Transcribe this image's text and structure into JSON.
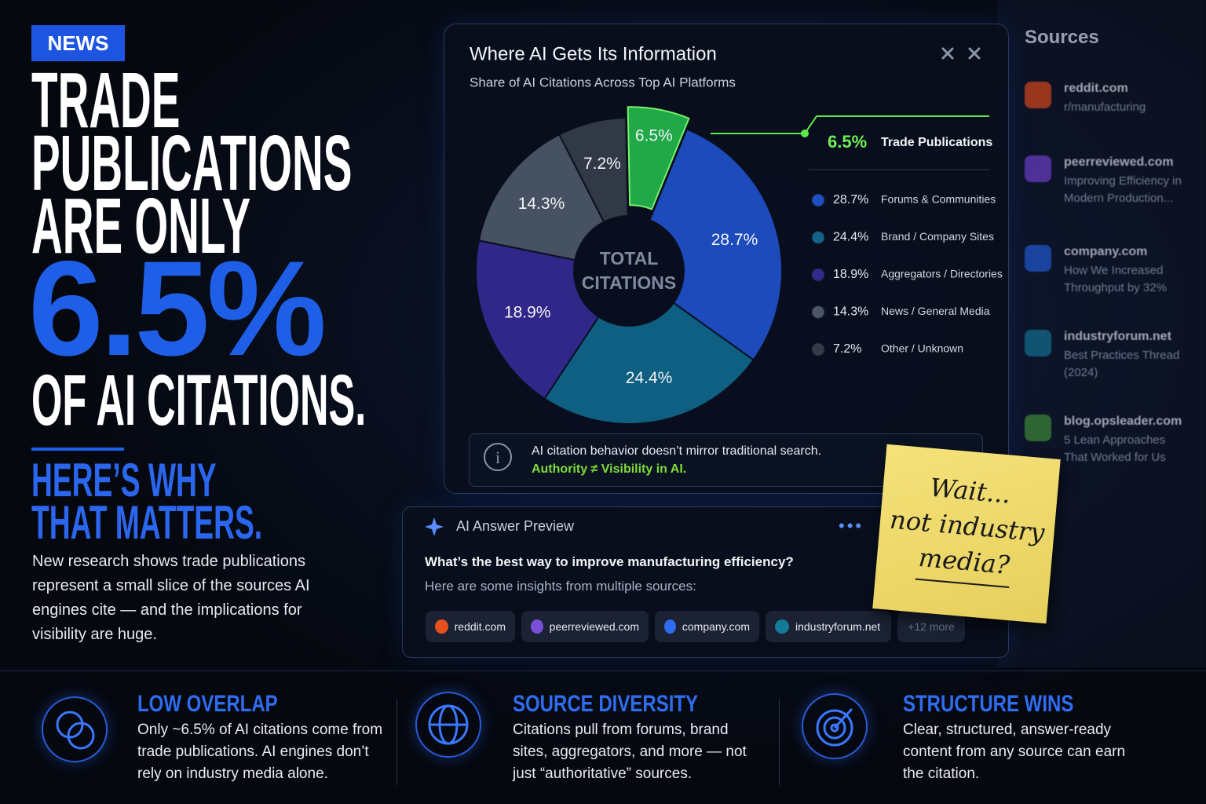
{
  "header": {
    "badge": "NEWS",
    "headline": [
      "TRADE",
      "PUBLICATIONS",
      "ARE ONLY"
    ],
    "highlight": "6.5%",
    "headline_end": "OF AI CITATIONS.",
    "subhead": [
      "HERE’S WHY",
      "THAT MATTERS."
    ],
    "body": "New research shows trade publications represent a small slice of the sources AI engines cite — and the implications for visibility are huge."
  },
  "chart_data": {
    "type": "pie",
    "title": "Where AI Gets Its Information",
    "subtitle": "Share of AI Citations Across Top AI Platforms",
    "center_label": "TOTAL CITATIONS",
    "categories": [
      "Trade Publications",
      "Forums & Communities",
      "Brand / Company Sites",
      "Aggregators / Directories",
      "News / General Media",
      "Other / Unknown"
    ],
    "values": [
      6.5,
      28.7,
      24.4,
      18.9,
      14.3,
      7.2
    ],
    "value_labels": [
      "6.5%",
      "28.7%",
      "24.4%",
      "18.9%",
      "14.3%",
      "7.2%"
    ],
    "colors": [
      "#22b14c",
      "#1f4fc4",
      "#0f6488",
      "#33298f",
      "#4a5566",
      "#343c4a"
    ]
  },
  "note": {
    "text": "AI citation behavior doesn’t mirror traditional search.",
    "emphasis": "Authority ≠ Visibility in AI."
  },
  "sticky_note": [
    "Wait...",
    "not industry",
    "media?"
  ],
  "answer_preview": {
    "title": "AI Answer Preview",
    "question": "What’s the best way to improve manufacturing efficiency?",
    "intro": "Here are some insights from multiple sources:",
    "chips": [
      "reddit.com",
      "peerreviewed.com",
      "company.com",
      "industryforum.net",
      "+12 more"
    ]
  },
  "sources": {
    "title": "Sources",
    "items": [
      {
        "domain": "reddit.com",
        "title": "r/manufacturing"
      },
      {
        "domain": "peerreviewed.com",
        "title": "Improving Efficiency in Modern Production..."
      },
      {
        "domain": "company.com",
        "title": "How We Increased Throughput by 32%"
      },
      {
        "domain": "industryforum.net",
        "title": "Best Practices Thread (2024)"
      },
      {
        "domain": "blog.opsleader.com",
        "title": "5 Lean Approaches That Worked for Us"
      }
    ]
  },
  "features": [
    {
      "title": "LOW OVERLAP",
      "text": "Only ~6.5% of AI citations come from trade publications. AI engines don’t rely on industry media alone."
    },
    {
      "title": "SOURCE DIVERSITY",
      "text": "Citations pull from forums, brand sites, aggregators, and more — not just “authoritative” sources."
    },
    {
      "title": "STRUCTURE WINS",
      "text": "Clear, structured, answer-ready content from any source can earn the citation."
    }
  ]
}
